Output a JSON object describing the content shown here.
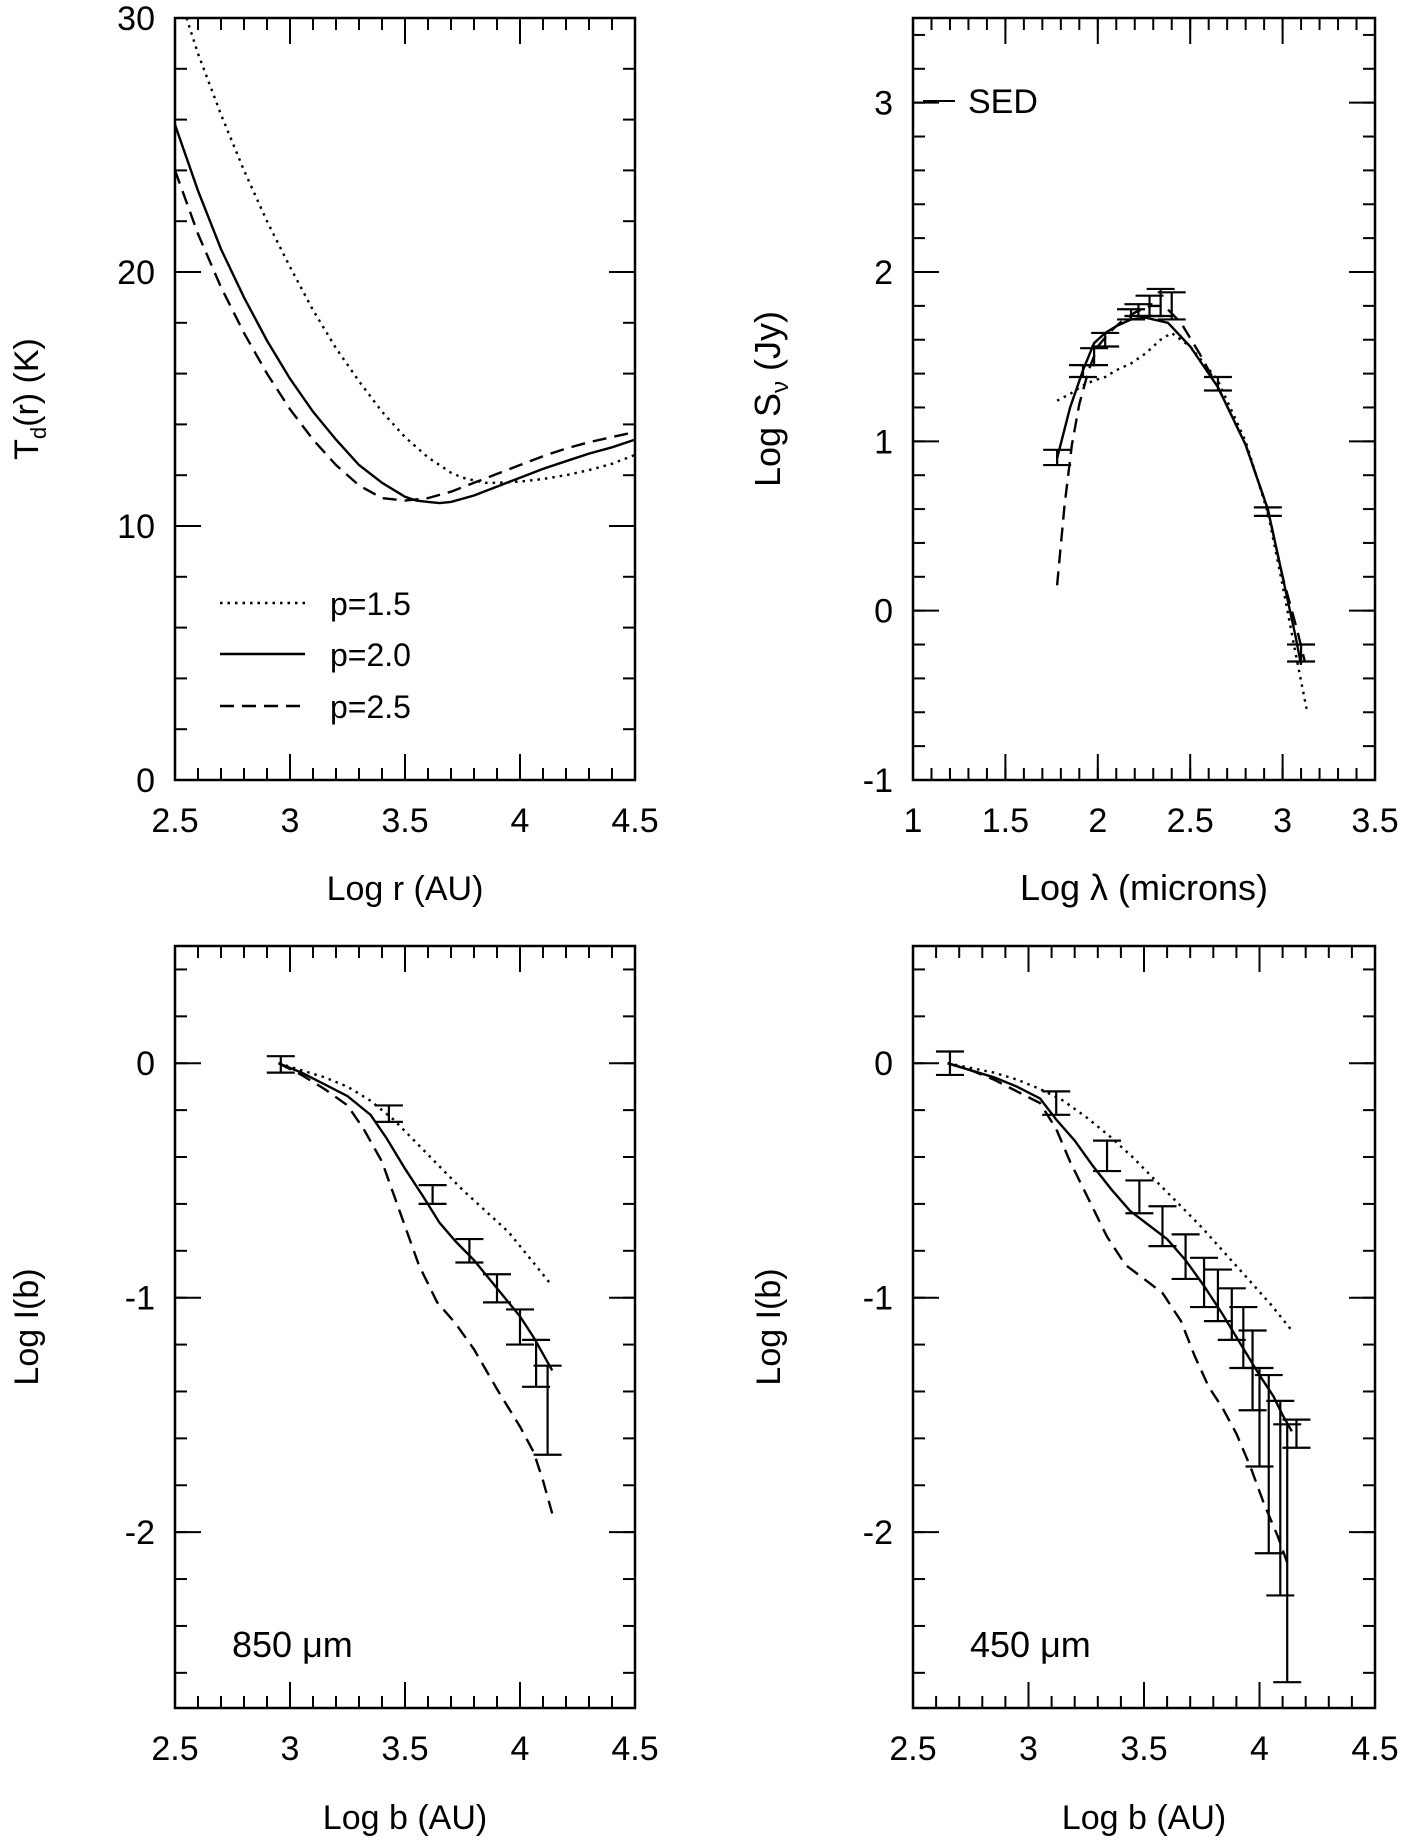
{
  "chart_data": [
    {
      "id": "td",
      "type": "line",
      "title": "",
      "xlabel": "Log r (AU)",
      "ylabel": "T_d(r)  (K)",
      "xlim": [
        2.5,
        4.5
      ],
      "ylim": [
        0,
        30
      ],
      "xticks": [
        2.5,
        3,
        3.5,
        4,
        4.5
      ],
      "xtick_labels": [
        "2.5",
        "3",
        "3.5",
        "4",
        "4.5"
      ],
      "yticks": [
        0,
        10,
        20,
        30
      ],
      "ytick_labels": [
        "0",
        "10",
        "20",
        "30"
      ],
      "xminor": 0.1,
      "yminor": 2,
      "legend": {
        "placement": "lower-left",
        "entries": [
          "p=1.5",
          "p=2.0",
          "p=2.5"
        ]
      },
      "series": [
        {
          "name": "p=1.5",
          "style": "dotted",
          "x": [
            2.55,
            2.6,
            2.7,
            2.8,
            2.9,
            3.0,
            3.1,
            3.2,
            3.3,
            3.4,
            3.5,
            3.6,
            3.7,
            3.75,
            3.8,
            3.85,
            3.9,
            4.0,
            4.1,
            4.2,
            4.3,
            4.4,
            4.5
          ],
          "y": [
            30,
            28.6,
            26.2,
            24.0,
            22.0,
            20.2,
            18.5,
            17.0,
            15.7,
            14.5,
            13.5,
            12.7,
            12.1,
            11.9,
            11.8,
            11.7,
            11.7,
            11.75,
            11.85,
            12.0,
            12.2,
            12.45,
            12.8
          ]
        },
        {
          "name": "p=2.0",
          "style": "solid",
          "x": [
            2.5,
            2.6,
            2.7,
            2.8,
            2.9,
            3.0,
            3.1,
            3.2,
            3.3,
            3.4,
            3.5,
            3.55,
            3.6,
            3.65,
            3.7,
            3.8,
            3.9,
            4.0,
            4.1,
            4.2,
            4.3,
            4.4,
            4.5
          ],
          "y": [
            25.8,
            23.2,
            20.9,
            19.0,
            17.3,
            15.8,
            14.5,
            13.4,
            12.4,
            11.7,
            11.15,
            11.0,
            10.95,
            10.9,
            10.95,
            11.2,
            11.55,
            11.9,
            12.25,
            12.55,
            12.85,
            13.1,
            13.4
          ]
        },
        {
          "name": "p=2.5",
          "style": "dashed",
          "x": [
            2.5,
            2.6,
            2.7,
            2.8,
            2.9,
            3.0,
            3.1,
            3.2,
            3.3,
            3.4,
            3.5,
            3.6,
            3.7,
            3.8,
            3.9,
            4.0,
            4.1,
            4.2,
            4.3,
            4.4,
            4.5
          ],
          "y": [
            24.0,
            21.5,
            19.4,
            17.6,
            16.0,
            14.6,
            13.4,
            12.4,
            11.6,
            11.1,
            11.0,
            11.1,
            11.35,
            11.7,
            12.05,
            12.4,
            12.75,
            13.05,
            13.3,
            13.5,
            13.7
          ]
        }
      ]
    },
    {
      "id": "sed",
      "type": "line",
      "title": "",
      "annotation": "SED",
      "xlabel": "Log  λ  (microns)",
      "ylabel": "Log  S_ν  (Jy)",
      "xlim": [
        1,
        3.5
      ],
      "ylim": [
        -1,
        3.5
      ],
      "xticks": [
        1,
        1.5,
        2,
        2.5,
        3,
        3.5
      ],
      "xtick_labels": [
        "1",
        "1.5",
        "2",
        "2.5",
        "3",
        "3.5"
      ],
      "yticks": [
        -1,
        0,
        1,
        2,
        3
      ],
      "ytick_labels": [
        "-1",
        "0",
        "1",
        "2",
        "3"
      ],
      "xminor": 0.1,
      "yminor": 0.2,
      "series": [
        {
          "name": "p=2.0",
          "style": "solid",
          "x": [
            1.78,
            1.85,
            1.92,
            1.98,
            2.04,
            2.1,
            2.18,
            2.26,
            2.38,
            2.5,
            2.65,
            2.8,
            2.92,
            3.0,
            3.07,
            3.1
          ],
          "y": [
            0.9,
            1.2,
            1.42,
            1.58,
            1.64,
            1.68,
            1.72,
            1.73,
            1.7,
            1.56,
            1.32,
            0.98,
            0.6,
            0.2,
            -0.15,
            -0.32
          ]
        },
        {
          "name": "p=1.5",
          "style": "dotted",
          "x": [
            1.78,
            1.85,
            1.92,
            1.98,
            2.04,
            2.1,
            2.18,
            2.26,
            2.34,
            2.4,
            2.5,
            2.65,
            2.8,
            2.92,
            3.0,
            3.07,
            3.13
          ],
          "y": [
            1.24,
            1.28,
            1.33,
            1.36,
            1.38,
            1.42,
            1.46,
            1.52,
            1.6,
            1.64,
            1.56,
            1.36,
            1.0,
            0.58,
            0.15,
            -0.25,
            -0.58
          ]
        },
        {
          "name": "p=2.5",
          "style": "dashed",
          "x": [
            1.78,
            1.82,
            1.86,
            1.9,
            1.95,
            2.0,
            2.06,
            2.12,
            2.2,
            2.28,
            2.36,
            2.45,
            2.55,
            2.65,
            2.8,
            2.92,
            3.0,
            3.08,
            3.12
          ],
          "y": [
            0.15,
            0.62,
            0.98,
            1.22,
            1.42,
            1.56,
            1.64,
            1.7,
            1.76,
            1.8,
            1.8,
            1.7,
            1.52,
            1.32,
            0.98,
            0.6,
            0.2,
            -0.12,
            -0.3
          ]
        }
      ],
      "errorbars": [
        {
          "x": 1.78,
          "y": 0.91,
          "lo": 0.86,
          "hi": 0.95
        },
        {
          "x": 1.92,
          "y": 1.41,
          "lo": 1.38,
          "hi": 1.45
        },
        {
          "x": 1.98,
          "y": 1.5,
          "lo": 1.45,
          "hi": 1.55
        },
        {
          "x": 2.04,
          "y": 1.6,
          "lo": 1.56,
          "hi": 1.64
        },
        {
          "x": 2.18,
          "y": 1.75,
          "lo": 1.72,
          "hi": 1.78
        },
        {
          "x": 2.22,
          "y": 1.77,
          "lo": 1.74,
          "hi": 1.81
        },
        {
          "x": 2.28,
          "y": 1.8,
          "lo": 1.74,
          "hi": 1.86
        },
        {
          "x": 2.34,
          "y": 1.82,
          "lo": 1.74,
          "hi": 1.9
        },
        {
          "x": 2.4,
          "y": 1.8,
          "lo": 1.72,
          "hi": 1.88
        },
        {
          "x": 2.65,
          "y": 1.34,
          "lo": 1.3,
          "hi": 1.38
        },
        {
          "x": 2.92,
          "y": 0.58,
          "lo": 0.56,
          "hi": 0.61
        },
        {
          "x": 3.1,
          "y": -0.25,
          "lo": -0.3,
          "hi": -0.2
        }
      ]
    },
    {
      "id": "i850",
      "type": "line",
      "title": "",
      "annotation": "850  μm",
      "xlabel": "Log b (AU)",
      "ylabel": "Log I(b)",
      "xlim": [
        2.5,
        4.5
      ],
      "ylim": [
        -2.75,
        0.5
      ],
      "xticks": [
        2.5,
        3,
        3.5,
        4,
        4.5
      ],
      "xtick_labels": [
        "2.5",
        "3",
        "3.5",
        "4",
        "4.5"
      ],
      "yticks": [
        -2,
        -1,
        0
      ],
      "ytick_labels": [
        "-2",
        "-1",
        "0"
      ],
      "xminor": 0.1,
      "yminor": 0.2,
      "series": [
        {
          "name": "p=2.0",
          "style": "solid",
          "x": [
            2.95,
            3.05,
            3.15,
            3.25,
            3.35,
            3.42,
            3.5,
            3.58,
            3.65,
            3.72,
            3.8,
            3.9,
            4.0,
            4.06,
            4.14
          ],
          "y": [
            0.0,
            -0.04,
            -0.09,
            -0.14,
            -0.22,
            -0.32,
            -0.45,
            -0.57,
            -0.68,
            -0.76,
            -0.84,
            -0.96,
            -1.08,
            -1.17,
            -1.31
          ]
        },
        {
          "name": "p=1.5",
          "style": "dotted",
          "x": [
            2.95,
            3.05,
            3.15,
            3.25,
            3.35,
            3.45,
            3.55,
            3.65,
            3.75,
            3.85,
            3.95,
            4.05,
            4.14
          ],
          "y": [
            0.0,
            -0.03,
            -0.06,
            -0.1,
            -0.16,
            -0.24,
            -0.34,
            -0.44,
            -0.54,
            -0.63,
            -0.72,
            -0.84,
            -0.95
          ]
        },
        {
          "name": "p=2.5",
          "style": "dashed",
          "x": [
            2.95,
            3.05,
            3.15,
            3.25,
            3.32,
            3.4,
            3.48,
            3.56,
            3.64,
            3.72,
            3.8,
            3.9,
            4.0,
            4.06,
            4.1,
            4.14
          ],
          "y": [
            0.0,
            -0.05,
            -0.11,
            -0.18,
            -0.28,
            -0.42,
            -0.64,
            -0.86,
            -1.02,
            -1.11,
            -1.22,
            -1.39,
            -1.55,
            -1.66,
            -1.78,
            -1.92
          ]
        }
      ],
      "errorbars": [
        {
          "x": 2.96,
          "y": 0.0,
          "lo": -0.04,
          "hi": 0.03
        },
        {
          "x": 3.43,
          "y": -0.21,
          "lo": -0.25,
          "hi": -0.18
        },
        {
          "x": 3.62,
          "y": -0.56,
          "lo": -0.6,
          "hi": -0.52
        },
        {
          "x": 3.78,
          "y": -0.8,
          "lo": -0.85,
          "hi": -0.75
        },
        {
          "x": 3.9,
          "y": -0.96,
          "lo": -1.02,
          "hi": -0.9
        },
        {
          "x": 4.0,
          "y": -1.13,
          "lo": -1.2,
          "hi": -1.05
        },
        {
          "x": 4.07,
          "y": -1.28,
          "lo": -1.38,
          "hi": -1.18
        },
        {
          "x": 4.12,
          "y": -1.48,
          "lo": -1.67,
          "hi": -1.29
        }
      ]
    },
    {
      "id": "i450",
      "type": "line",
      "title": "",
      "annotation": "450  μm",
      "xlabel": "Log b (AU)",
      "ylabel": "Log I(b)",
      "xlim": [
        2.5,
        4.5
      ],
      "ylim": [
        -2.75,
        0.5
      ],
      "xticks": [
        2.5,
        3,
        3.5,
        4,
        4.5
      ],
      "xtick_labels": [
        "2.5",
        "3",
        "3.5",
        "4",
        "4.5"
      ],
      "yticks": [
        -2,
        -1,
        0
      ],
      "ytick_labels": [
        "-2",
        "-1",
        "0"
      ],
      "xminor": 0.1,
      "yminor": 0.2,
      "series": [
        {
          "name": "p=2.0",
          "style": "solid",
          "x": [
            2.65,
            2.75,
            2.85,
            2.95,
            3.05,
            3.12,
            3.2,
            3.28,
            3.36,
            3.44,
            3.52,
            3.6,
            3.68,
            3.76,
            3.84,
            3.92,
            4.0,
            4.06,
            4.1,
            4.14
          ],
          "y": [
            0.0,
            -0.03,
            -0.06,
            -0.1,
            -0.15,
            -0.24,
            -0.33,
            -0.44,
            -0.54,
            -0.63,
            -0.69,
            -0.75,
            -0.84,
            -0.95,
            -1.07,
            -1.2,
            -1.33,
            -1.42,
            -1.5,
            -1.57
          ]
        },
        {
          "name": "p=1.5",
          "style": "dotted",
          "x": [
            2.65,
            2.75,
            2.85,
            2.95,
            3.05,
            3.15,
            3.25,
            3.35,
            3.45,
            3.55,
            3.65,
            3.75,
            3.85,
            3.95,
            4.05,
            4.14
          ],
          "y": [
            0.0,
            -0.02,
            -0.04,
            -0.07,
            -0.11,
            -0.16,
            -0.23,
            -0.31,
            -0.4,
            -0.5,
            -0.6,
            -0.7,
            -0.81,
            -0.92,
            -1.03,
            -1.14
          ]
        },
        {
          "name": "p=2.5",
          "style": "dashed",
          "x": [
            2.65,
            2.75,
            2.85,
            2.95,
            3.05,
            3.12,
            3.18,
            3.26,
            3.34,
            3.42,
            3.5,
            3.58,
            3.66,
            3.72,
            3.78,
            3.84,
            3.9,
            3.96,
            4.02,
            4.08,
            4.12
          ],
          "y": [
            0.0,
            -0.03,
            -0.07,
            -0.12,
            -0.17,
            -0.28,
            -0.42,
            -0.58,
            -0.74,
            -0.86,
            -0.92,
            -0.98,
            -1.1,
            -1.25,
            -1.38,
            -1.47,
            -1.58,
            -1.72,
            -1.88,
            -2.02,
            -2.13
          ]
        }
      ],
      "errorbars": [
        {
          "x": 2.66,
          "y": 0.0,
          "lo": -0.05,
          "hi": 0.05
        },
        {
          "x": 3.12,
          "y": -0.17,
          "lo": -0.22,
          "hi": -0.12
        },
        {
          "x": 3.34,
          "y": -0.39,
          "lo": -0.46,
          "hi": -0.33
        },
        {
          "x": 3.48,
          "y": -0.57,
          "lo": -0.64,
          "hi": -0.5
        },
        {
          "x": 3.58,
          "y": -0.69,
          "lo": -0.78,
          "hi": -0.61
        },
        {
          "x": 3.68,
          "y": -0.82,
          "lo": -0.92,
          "hi": -0.73
        },
        {
          "x": 3.76,
          "y": -0.93,
          "lo": -1.04,
          "hi": -0.83
        },
        {
          "x": 3.82,
          "y": -0.99,
          "lo": -1.1,
          "hi": -0.88
        },
        {
          "x": 3.88,
          "y": -1.07,
          "lo": -1.18,
          "hi": -0.96
        },
        {
          "x": 3.93,
          "y": -1.16,
          "lo": -1.3,
          "hi": -1.04
        },
        {
          "x": 3.97,
          "y": -1.31,
          "lo": -1.48,
          "hi": -1.14
        },
        {
          "x": 4.0,
          "y": -1.48,
          "lo": -1.72,
          "hi": -1.3
        },
        {
          "x": 4.04,
          "y": -1.6,
          "lo": -2.09,
          "hi": -1.33
        },
        {
          "x": 4.09,
          "y": -1.78,
          "lo": -2.27,
          "hi": -1.44
        },
        {
          "x": 4.12,
          "y": -2.07,
          "lo": -2.64,
          "hi": -1.54
        },
        {
          "x": 4.16,
          "y": -1.57,
          "lo": -1.64,
          "hi": -1.52
        }
      ]
    }
  ]
}
